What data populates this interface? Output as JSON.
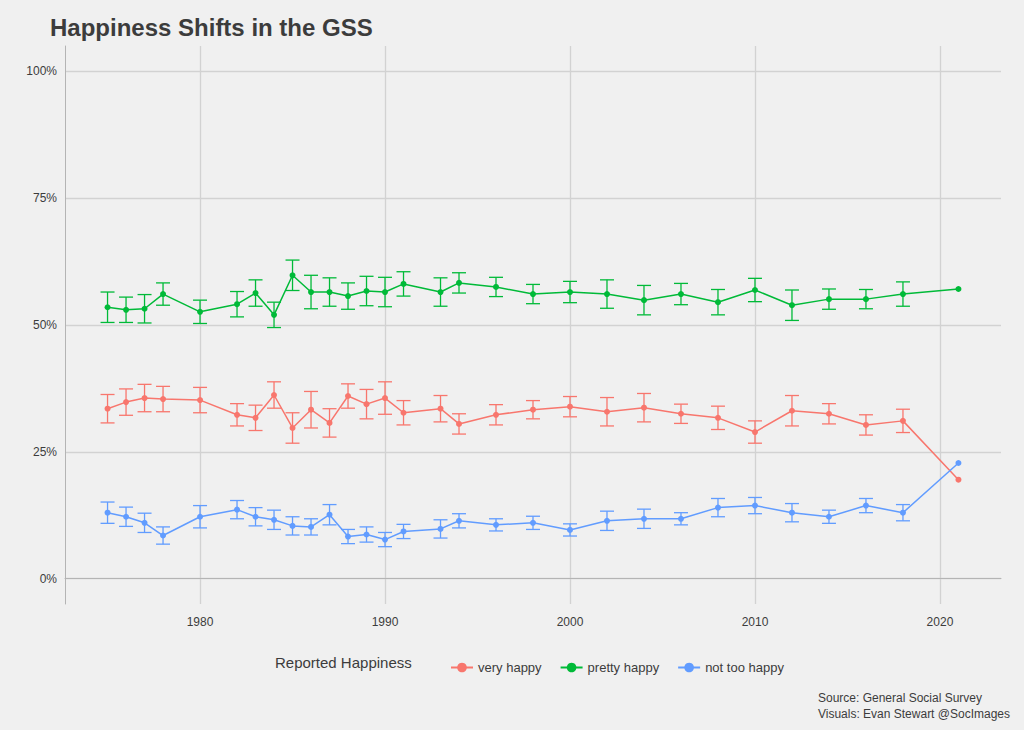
{
  "chart_data": {
    "type": "line",
    "title": "Happiness Shifts in the GSS",
    "legend_title": "Reported Happiness",
    "caption": [
      "Source: General Social Survey",
      "Visuals: Evan Stewart @SocImages"
    ],
    "x": [
      1975,
      1976,
      1977,
      1978,
      1980,
      1982,
      1983,
      1984,
      1985,
      1986,
      1987,
      1988,
      1989,
      1990,
      1991,
      1993,
      1994,
      1996,
      1998,
      2000,
      2002,
      2004,
      2006,
      2008,
      2010,
      2012,
      2014,
      2016,
      2018,
      2021
    ],
    "series": [
      {
        "name": "very happy",
        "color": "#F8766D",
        "values": [
          33.5,
          34.8,
          35.6,
          35.4,
          35.2,
          32.3,
          31.7,
          36.2,
          29.7,
          33.3,
          30.7,
          36.0,
          34.4,
          35.6,
          32.7,
          33.5,
          30.5,
          32.3,
          33.3,
          33.9,
          32.9,
          33.7,
          32.5,
          31.7,
          28.9,
          33.1,
          32.5,
          30.3,
          31.1,
          19.5
        ],
        "error": [
          2.8,
          2.6,
          2.7,
          2.5,
          2.5,
          2.2,
          2.5,
          2.6,
          3.0,
          3.6,
          2.8,
          2.4,
          2.9,
          3.2,
          2.4,
          2.6,
          2.0,
          2.0,
          1.8,
          2.0,
          2.8,
          2.8,
          1.9,
          2.3,
          2.2,
          3.0,
          2.0,
          2.0,
          2.3,
          null
        ]
      },
      {
        "name": "pretty happy",
        "color": "#00BA38",
        "values": [
          53.5,
          53.0,
          53.2,
          56.1,
          52.6,
          54.1,
          56.3,
          52.0,
          59.8,
          56.5,
          56.5,
          55.7,
          56.7,
          56.5,
          58.1,
          56.5,
          58.3,
          57.5,
          56.1,
          56.5,
          56.1,
          54.9,
          56.1,
          54.5,
          56.9,
          53.9,
          55.1,
          55.1,
          56.1,
          57.1
        ],
        "error": [
          3.0,
          2.5,
          2.8,
          2.2,
          2.3,
          2.5,
          2.6,
          2.5,
          3.0,
          3.3,
          2.8,
          2.6,
          2.9,
          2.9,
          2.4,
          2.8,
          2.0,
          1.9,
          1.9,
          2.1,
          2.8,
          2.9,
          2.1,
          2.5,
          2.3,
          3.0,
          2.0,
          1.9,
          2.4,
          null
        ]
      },
      {
        "name": "not too happy",
        "color": "#619CFF",
        "values": [
          13.0,
          12.2,
          11.0,
          8.5,
          12.2,
          13.6,
          12.2,
          11.6,
          10.4,
          10.2,
          12.6,
          8.3,
          8.7,
          7.7,
          9.3,
          9.8,
          11.4,
          10.6,
          11.0,
          9.6,
          11.4,
          11.8,
          11.8,
          14.0,
          14.4,
          13.0,
          12.2,
          14.4,
          13.0,
          22.8
        ],
        "error": [
          2.1,
          1.9,
          1.9,
          1.7,
          2.2,
          1.8,
          1.8,
          1.9,
          1.8,
          1.6,
          2.0,
          1.4,
          1.5,
          1.4,
          1.4,
          1.8,
          1.4,
          1.2,
          1.3,
          1.2,
          1.9,
          1.9,
          1.2,
          1.8,
          1.6,
          1.8,
          1.3,
          1.4,
          1.6,
          null
        ]
      }
    ],
    "xlim": [
      1972.7,
      2023.3
    ],
    "xticks": [
      1980,
      1990,
      2000,
      2010,
      2020
    ],
    "ylim": [
      -5,
      105
    ],
    "yticks": [
      {
        "value": 0,
        "label": "0%"
      },
      {
        "value": 25,
        "label": "25%"
      },
      {
        "value": 50,
        "label": "50%"
      },
      {
        "value": 75,
        "label": "75%"
      },
      {
        "value": 100,
        "label": "100%"
      }
    ],
    "grid": true,
    "legend": "bottom",
    "marker": "circle",
    "line_style": "solid"
  }
}
